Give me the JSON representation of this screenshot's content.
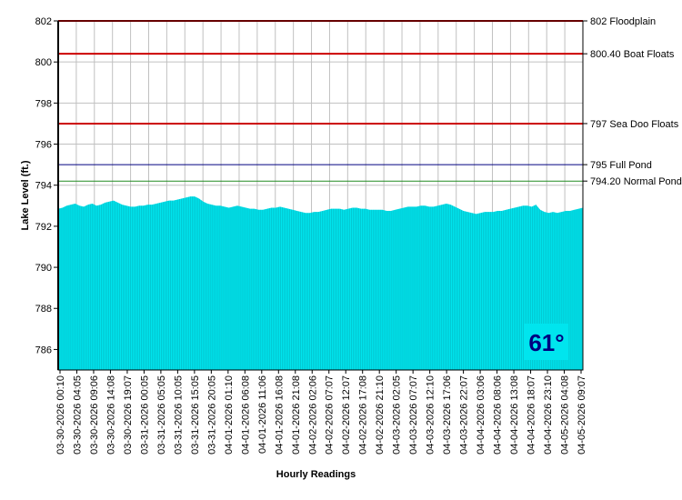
{
  "chart_data": {
    "type": "area",
    "xlabel": "Hourly Readings",
    "ylabel": "Lake Level (ft.)",
    "ylim": [
      785,
      802
    ],
    "y_ticks": [
      786,
      788,
      790,
      792,
      794,
      796,
      798,
      800,
      802
    ],
    "x_tick_labels": [
      "03-30-2026 00:10",
      "03-30-2026 04:05",
      "03-30-2026 09:06",
      "03-30-2026 14:08",
      "03-30-2026 19:07",
      "03-31-2026 00:05",
      "03-31-2026 05:05",
      "03-31-2026 10:05",
      "03-31-2026 15:05",
      "03-31-2026 20:05",
      "04-01-2026 01:10",
      "04-01-2026 06:08",
      "04-01-2026 11:06",
      "04-01-2026 16:08",
      "04-01-2026 21:08",
      "04-02-2026 02:06",
      "04-02-2026 07:07",
      "04-02-2026 12:07",
      "04-02-2026 17:08",
      "04-02-2026 21:10",
      "04-03-2026 02:05",
      "04-03-2026 07:07",
      "04-03-2026 12:10",
      "04-03-2026 17:06",
      "04-03-2026 22:07",
      "04-04-2026 03:06",
      "04-04-2026 08:06",
      "04-04-2026 13:08",
      "04-04-2026 18:07",
      "04-04-2026 23:10",
      "04-05-2026 04:08",
      "04-05-2026 09:07"
    ],
    "grid": true,
    "fill_color": "#00e5ee",
    "series": [
      {
        "values": [
          792.85,
          792.9,
          793.0,
          793.05,
          793.1,
          793.0,
          792.95,
          793.05,
          793.1,
          793.0,
          793.05,
          793.15,
          793.2,
          793.25,
          793.15,
          793.05,
          793.0,
          792.95,
          792.95,
          793.0,
          793.0,
          793.05,
          793.05,
          793.1,
          793.15,
          793.2,
          793.25,
          793.25,
          793.3,
          793.35,
          793.4,
          793.45,
          793.45,
          793.35,
          793.2,
          793.1,
          793.05,
          793.0,
          793.0,
          792.95,
          792.9,
          792.95,
          793.0,
          792.95,
          792.9,
          792.85,
          792.85,
          792.8,
          792.8,
          792.85,
          792.9,
          792.9,
          792.95,
          792.9,
          792.85,
          792.8,
          792.75,
          792.7,
          792.65,
          792.65,
          792.7,
          792.7,
          792.75,
          792.8,
          792.85,
          792.85,
          792.85,
          792.8,
          792.85,
          792.9,
          792.9,
          792.85,
          792.85,
          792.8,
          792.8,
          792.8,
          792.8,
          792.75,
          792.75,
          792.8,
          792.85,
          792.9,
          792.95,
          792.95,
          792.95,
          793.0,
          793.0,
          792.95,
          792.95,
          793.0,
          793.05,
          793.1,
          793.05,
          792.95,
          792.85,
          792.75,
          792.7,
          792.65,
          792.6,
          792.65,
          792.7,
          792.7,
          792.7,
          792.75,
          792.75,
          792.8,
          792.85,
          792.9,
          792.95,
          793.0,
          793.0,
          792.95,
          793.05,
          792.8,
          792.7,
          792.65,
          792.7,
          792.65,
          792.7,
          792.75,
          792.75,
          792.8,
          792.85,
          792.9
        ]
      }
    ],
    "reference_lines": [
      {
        "value": 802,
        "label": "802 Floodplain",
        "color": "#cc0000"
      },
      {
        "value": 800.4,
        "label": "800.40 Boat Floats",
        "color": "#cc0000"
      },
      {
        "value": 797,
        "label": "797 Sea Doo Floats",
        "color": "#cc0000"
      },
      {
        "value": 795,
        "label": "795 Full Pond",
        "color": "#000080"
      },
      {
        "value": 794.2,
        "label": "794.20 Normal Pond",
        "color": "#228b22"
      }
    ]
  },
  "temperature_badge": {
    "text": "61°",
    "text_color": "#000080",
    "background": "#00e5ee"
  }
}
